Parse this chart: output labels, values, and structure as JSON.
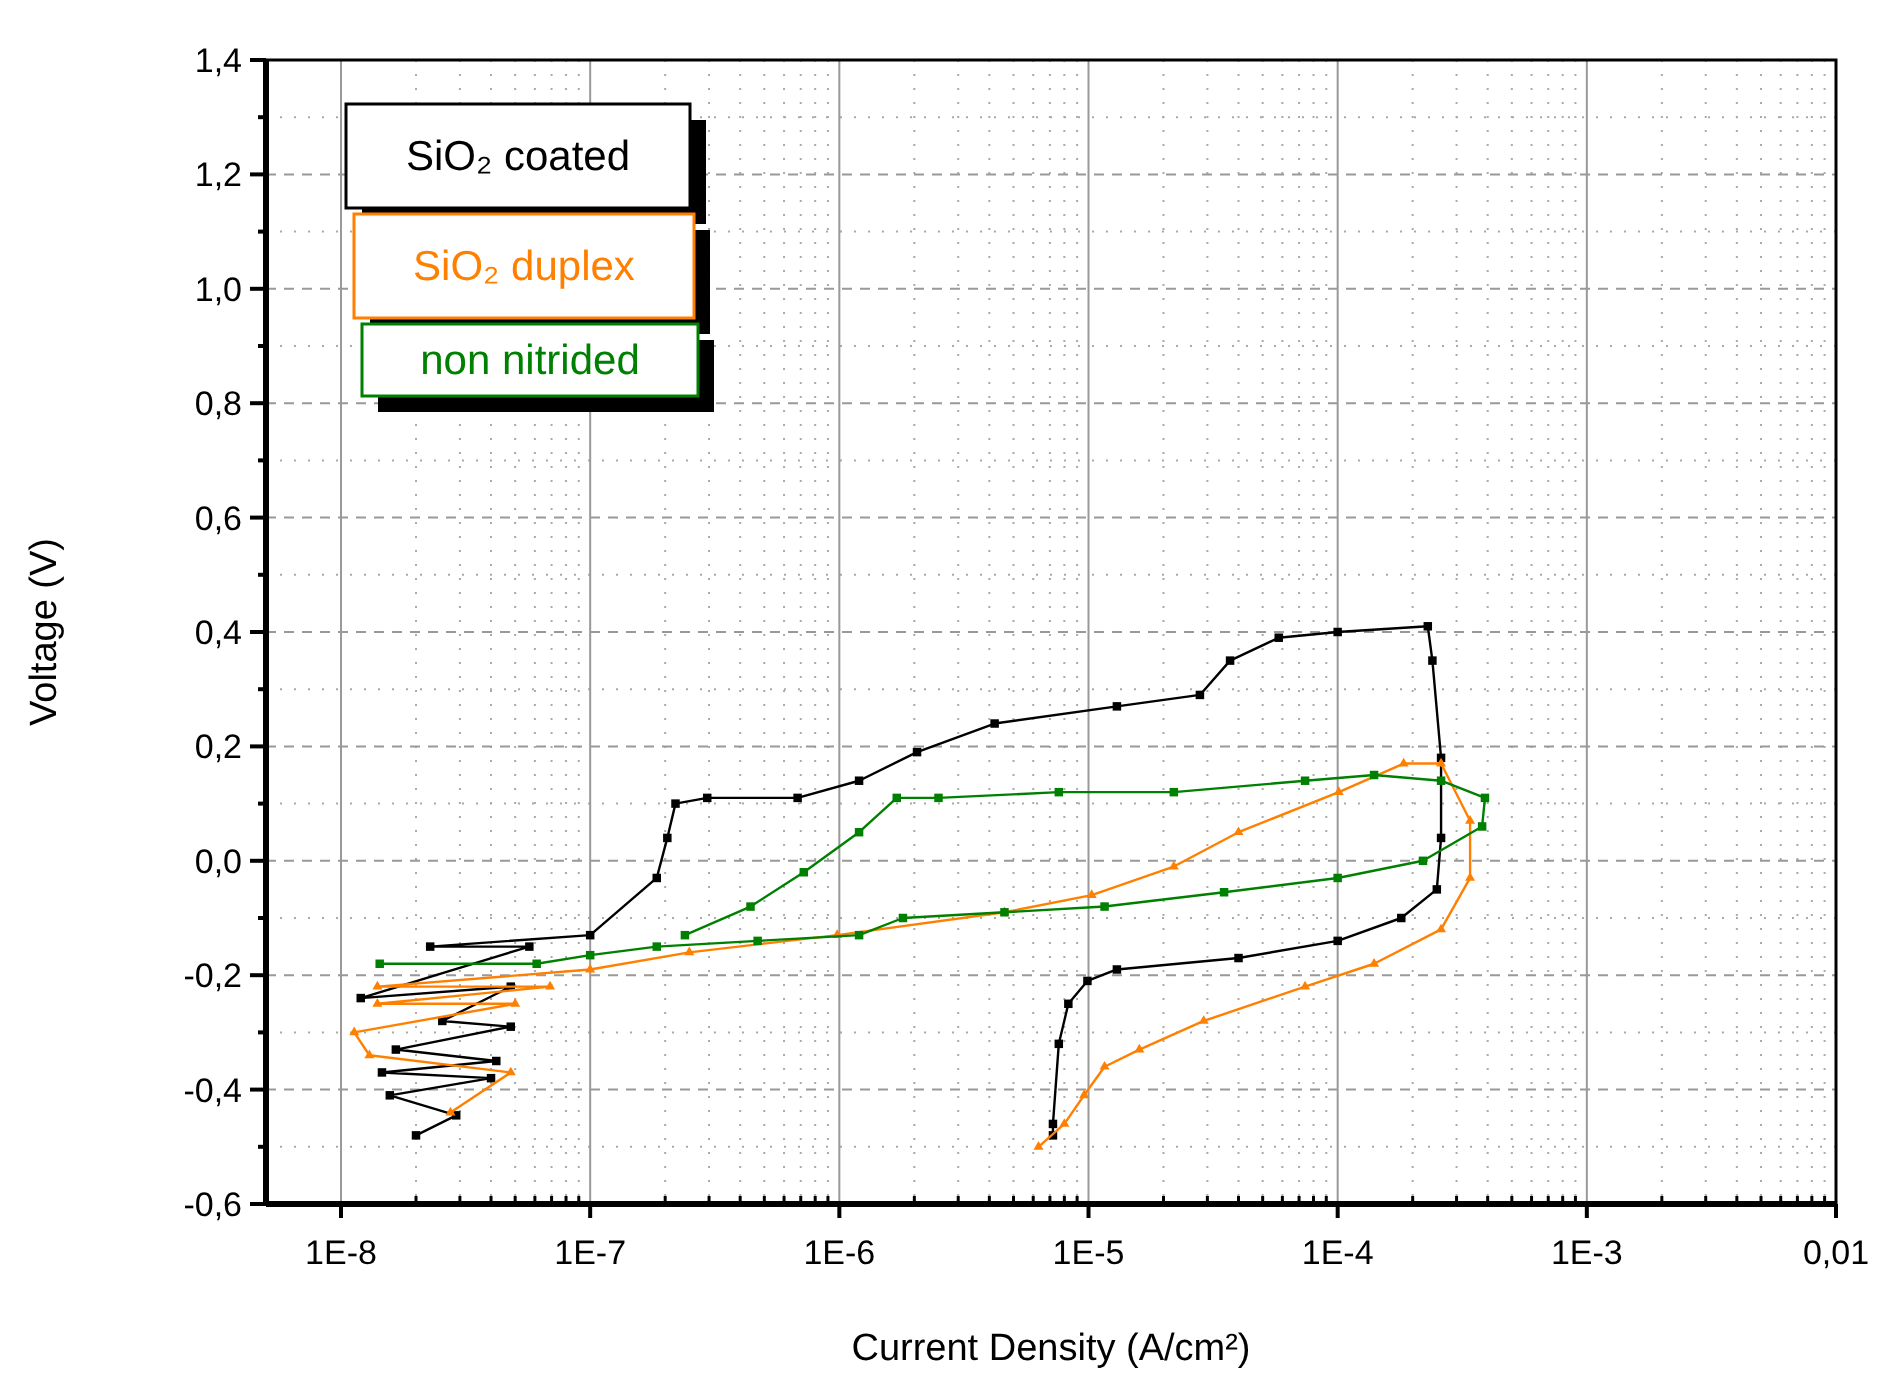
{
  "chart_data": {
    "type": "line",
    "xlabel": "Current Density (A/cm²)",
    "ylabel": "Voltage (V)",
    "log": "x",
    "grid": true,
    "legend": "top left",
    "line_style": "solid",
    "xlim": [
      5e-09,
      0.01
    ],
    "xticks": [
      {
        "value": 1e-08,
        "label": "1E-8"
      },
      {
        "value": 1e-07,
        "label": "1E-7"
      },
      {
        "value": 1e-06,
        "label": "1E-6"
      },
      {
        "value": 1e-05,
        "label": "1E-5"
      },
      {
        "value": 0.0001,
        "label": "1E-4"
      },
      {
        "value": 0.001,
        "label": "1E-3"
      },
      {
        "value": 0.01,
        "label": "0,01"
      }
    ],
    "ylim": [
      -0.6,
      1.4
    ],
    "yticks": [
      {
        "value": -0.6,
        "label": "-0,6"
      },
      {
        "value": -0.4,
        "label": "-0,4"
      },
      {
        "value": -0.2,
        "label": "-0,2"
      },
      {
        "value": 0,
        "label": "0,0"
      },
      {
        "value": 0.2,
        "label": "0,2"
      },
      {
        "value": 0.4,
        "label": "0,4"
      },
      {
        "value": 0.6,
        "label": "0,6"
      },
      {
        "value": 0.8,
        "label": "0,8"
      },
      {
        "value": 1.0,
        "label": "1,0"
      },
      {
        "value": 1.2,
        "label": "1,2"
      },
      {
        "value": 1.4,
        "label": "1,4"
      }
    ],
    "series": [
      {
        "name": "SiO₂ coated",
        "color": "#000000",
        "marker": "square",
        "x": [
          2e-08,
          2.9e-08,
          1.57e-08,
          4e-08,
          1.46e-08,
          4.2e-08,
          1.66e-08,
          4.8e-08,
          2.55e-08,
          4.8e-08,
          1.2e-08,
          5.7e-08,
          2.28e-08,
          1e-07,
          1.85e-07,
          2.04e-07,
          2.2e-07,
          2.95e-07,
          6.8e-07,
          1.2e-06,
          2.05e-06,
          4.2e-06,
          1.3e-05,
          2.8e-05,
          3.7e-05,
          5.8e-05,
          0.0001,
          0.00023,
          0.00024,
          0.00026,
          0.00026,
          0.00025,
          0.00018,
          0.0001,
          4e-05,
          1.3e-05,
          9.9e-06,
          8.3e-06,
          7.6e-06,
          7.2e-06,
          7.2e-06
        ],
        "values": [
          -0.48,
          -0.445,
          -0.41,
          -0.38,
          -0.37,
          -0.35,
          -0.33,
          -0.29,
          -0.28,
          -0.22,
          -0.24,
          -0.15,
          -0.15,
          -0.13,
          -0.03,
          0.04,
          0.1,
          0.11,
          0.11,
          0.14,
          0.19,
          0.24,
          0.27,
          0.29,
          0.35,
          0.39,
          0.4,
          0.41,
          0.35,
          0.18,
          0.04,
          -0.05,
          -0.1,
          -0.14,
          -0.17,
          -0.19,
          -0.21,
          -0.25,
          -0.32,
          -0.46,
          -0.48
        ]
      },
      {
        "name": "SiO₂ duplex",
        "color": "#ff8000",
        "marker": "triangle",
        "x": [
          2.75e-08,
          4.8e-08,
          1.3e-08,
          1.13e-08,
          5e-08,
          1.4e-08,
          6.9e-08,
          1.4e-08,
          1e-07,
          2.5e-07,
          9.8e-07,
          4.6e-06,
          1.03e-05,
          2.2e-05,
          4e-05,
          0.000101,
          0.000184,
          0.00026,
          0.00034,
          0.00034,
          0.00026,
          0.00014,
          7.4e-05,
          2.9e-05,
          1.6e-05,
          1.16e-05,
          9.6e-06,
          8e-06,
          6.3e-06
        ],
        "values": [
          -0.44,
          -0.37,
          -0.34,
          -0.3,
          -0.25,
          -0.25,
          -0.22,
          -0.22,
          -0.19,
          -0.16,
          -0.13,
          -0.09,
          -0.06,
          -0.01,
          0.05,
          0.12,
          0.17,
          0.17,
          0.07,
          -0.03,
          -0.12,
          -0.18,
          -0.22,
          -0.28,
          -0.33,
          -0.36,
          -0.41,
          -0.46,
          -0.5
        ]
      },
      {
        "name": "non nitrided",
        "color": "#008000",
        "marker": "square",
        "x": [
          1.43e-08,
          6.1e-08,
          1e-07,
          1.85e-07,
          4.7e-07,
          1.2e-06,
          1.8e-06,
          4.6e-06,
          1.16e-05,
          3.5e-05,
          0.0001,
          0.00022,
          0.00038,
          0.00039,
          0.00026,
          0.00014,
          7.4e-05,
          2.2e-05,
          7.6e-06,
          2.5e-06,
          1.7e-06,
          1.2e-06,
          7.2e-07,
          4.4e-07,
          2.4e-07
        ],
        "values": [
          -0.18,
          -0.18,
          -0.165,
          -0.15,
          -0.14,
          -0.13,
          -0.1,
          -0.09,
          -0.08,
          -0.055,
          -0.03,
          0,
          0.06,
          0.11,
          0.14,
          0.15,
          0.14,
          0.12,
          0.12,
          0.11,
          0.11,
          0.05,
          -0.02,
          -0.08,
          -0.13
        ]
      }
    ]
  }
}
